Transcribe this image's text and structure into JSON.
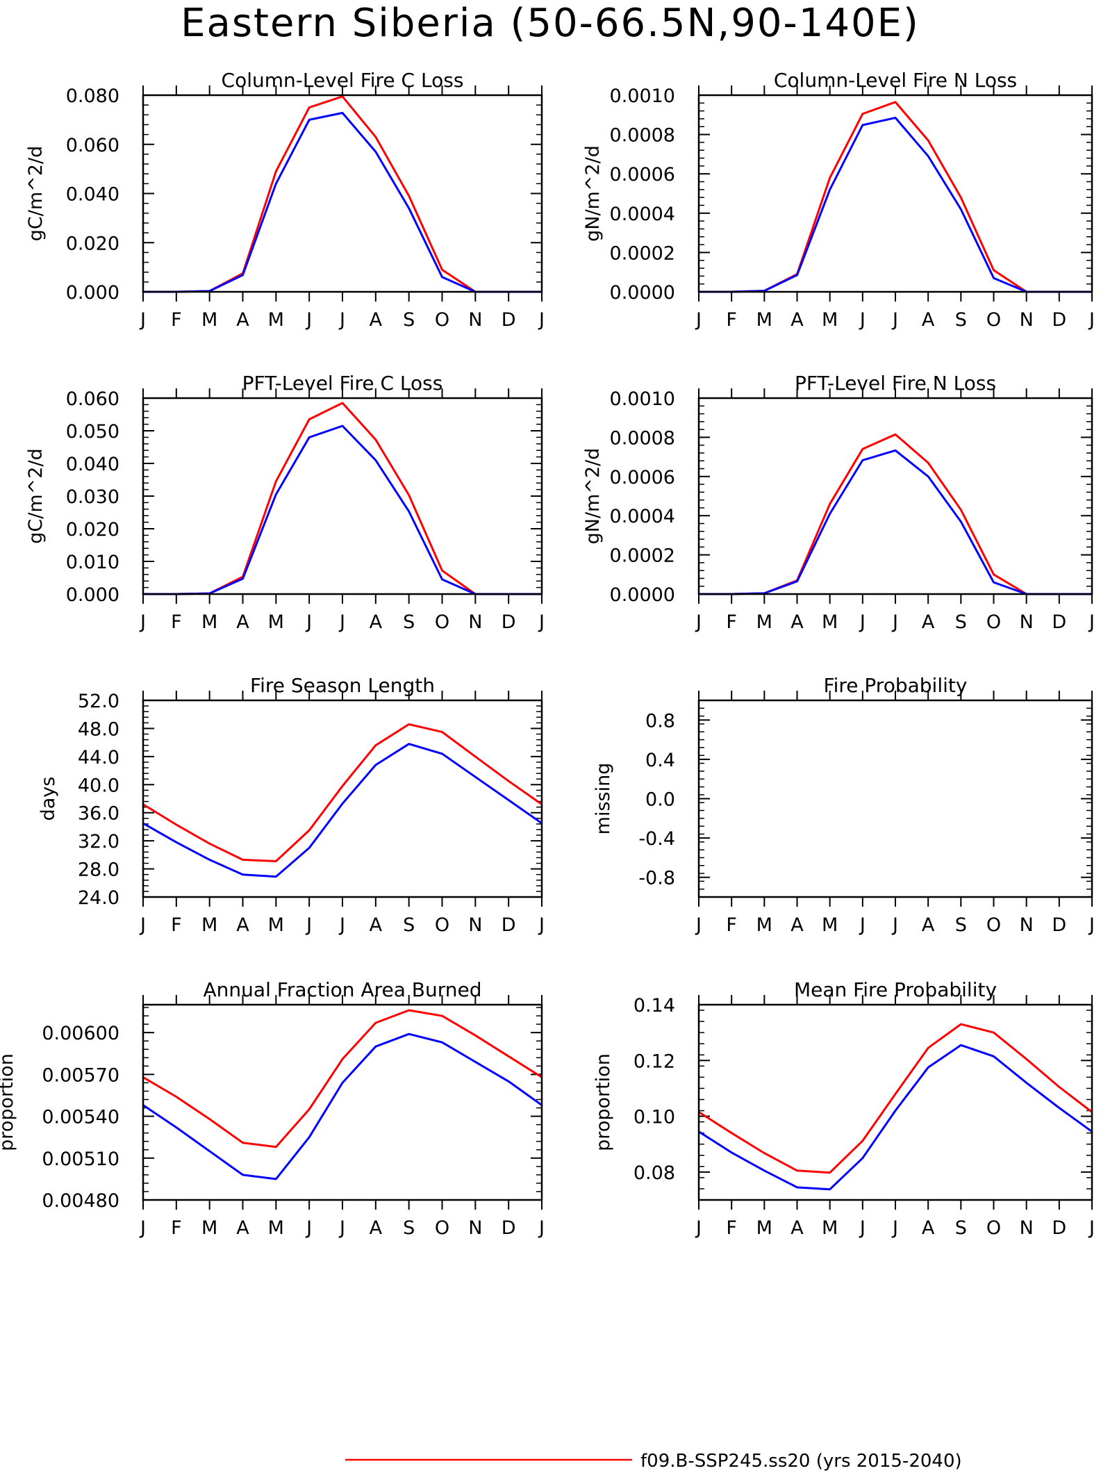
{
  "figure": {
    "title": "Eastern Siberia (50-66.5N,90-140E)",
    "colors": {
      "series_a": "#ff0000",
      "series_b": "#0000ff",
      "frame": "#000000"
    }
  },
  "legend": {
    "entries": [
      {
        "label": "f09.B-SSP245.ss20 (yrs 2015-2040)",
        "color": "#ff0000"
      }
    ]
  },
  "chart_data": [
    {
      "type": "line",
      "title": "Column-Level Fire C Loss",
      "ylabel": "gC/m^2/d",
      "categories": [
        "J",
        "F",
        "M",
        "A",
        "M",
        "J",
        "J",
        "A",
        "S",
        "O",
        "N",
        "D",
        "J"
      ],
      "ylim": [
        0,
        0.08
      ],
      "yticks": [
        "0.000",
        "0.020",
        "0.040",
        "0.060",
        "0.080"
      ],
      "series": [
        {
          "color": "#ff0000",
          "values": [
            0,
            0,
            0.0003,
            0.0075,
            0.049,
            0.075,
            0.0795,
            0.063,
            0.039,
            0.009,
            0,
            0,
            0
          ]
        },
        {
          "color": "#0000ff",
          "values": [
            0,
            0,
            0.0003,
            0.0068,
            0.044,
            0.07,
            0.0728,
            0.057,
            0.034,
            0.006,
            0,
            0,
            0
          ]
        }
      ]
    },
    {
      "type": "line",
      "title": "Column-Level Fire N Loss",
      "ylabel": "gN/m^2/d",
      "categories": [
        "J",
        "F",
        "M",
        "A",
        "M",
        "J",
        "J",
        "A",
        "S",
        "O",
        "N",
        "D",
        "J"
      ],
      "ylim": [
        0,
        0.001
      ],
      "yticks": [
        "0.0000",
        "0.0002",
        "0.0004",
        "0.0006",
        "0.0008",
        "0.0010"
      ],
      "series": [
        {
          "color": "#ff0000",
          "values": [
            0,
            0,
            5e-06,
            9e-05,
            0.00058,
            0.000905,
            0.000965,
            0.00077,
            0.00048,
            0.00011,
            0,
            0,
            0
          ]
        },
        {
          "color": "#0000ff",
          "values": [
            0,
            0,
            5e-06,
            8.5e-05,
            0.00052,
            0.000848,
            0.000885,
            0.00069,
            0.00042,
            7e-05,
            0,
            0,
            0
          ]
        }
      ]
    },
    {
      "type": "line",
      "title": "PFT-Level Fire C Loss",
      "ylabel": "gC/m^2/d",
      "categories": [
        "J",
        "F",
        "M",
        "A",
        "M",
        "J",
        "J",
        "A",
        "S",
        "O",
        "N",
        "D",
        "J"
      ],
      "ylim": [
        0,
        0.06
      ],
      "yticks": [
        "0.000",
        "0.010",
        "0.020",
        "0.030",
        "0.040",
        "0.050",
        "0.060"
      ],
      "series": [
        {
          "color": "#ff0000",
          "values": [
            0,
            0,
            0.0002,
            0.0053,
            0.0345,
            0.0535,
            0.0585,
            0.0473,
            0.0303,
            0.0072,
            0,
            0,
            0
          ]
        },
        {
          "color": "#0000ff",
          "values": [
            0,
            0,
            0.0002,
            0.0047,
            0.0305,
            0.048,
            0.0515,
            0.041,
            0.0253,
            0.0045,
            0,
            0,
            0
          ]
        }
      ]
    },
    {
      "type": "line",
      "title": "PFT-Level Fire N Loss",
      "ylabel": "gN/m^2/d",
      "categories": [
        "J",
        "F",
        "M",
        "A",
        "M",
        "J",
        "J",
        "A",
        "S",
        "O",
        "N",
        "D",
        "J"
      ],
      "ylim": [
        0,
        0.001
      ],
      "yticks": [
        "0.0000",
        "0.0002",
        "0.0004",
        "0.0006",
        "0.0008",
        "0.0010"
      ],
      "series": [
        {
          "color": "#ff0000",
          "values": [
            0,
            0,
            4e-06,
            7e-05,
            0.00046,
            0.00074,
            0.000815,
            0.00067,
            0.00043,
            0.0001,
            0,
            0,
            0
          ]
        },
        {
          "color": "#0000ff",
          "values": [
            0,
            0,
            4e-06,
            6.5e-05,
            0.00041,
            0.000683,
            0.000733,
            0.0006,
            0.00037,
            6e-05,
            0,
            0,
            0
          ]
        }
      ]
    },
    {
      "type": "line",
      "title": "Fire Season Length",
      "ylabel": "days",
      "categories": [
        "J",
        "F",
        "M",
        "A",
        "M",
        "J",
        "J",
        "A",
        "S",
        "O",
        "N",
        "D",
        "J"
      ],
      "ylim": [
        24,
        52
      ],
      "yticks": [
        "24.0",
        "28.0",
        "32.0",
        "36.0",
        "40.0",
        "44.0",
        "48.0",
        "52.0"
      ],
      "series": [
        {
          "color": "#ff0000",
          "values": [
            37.2,
            34.3,
            31.6,
            29.3,
            29.1,
            33.5,
            39.8,
            45.6,
            48.6,
            47.5,
            44.0,
            40.5,
            37.2
          ]
        },
        {
          "color": "#0000ff",
          "values": [
            34.5,
            31.8,
            29.3,
            27.2,
            26.9,
            31.0,
            37.3,
            42.8,
            45.8,
            44.4,
            41.1,
            37.8,
            34.5
          ]
        }
      ]
    },
    {
      "type": "line",
      "title": "Fire Probability",
      "ylabel": "missing",
      "categories": [
        "J",
        "F",
        "M",
        "A",
        "M",
        "J",
        "J",
        "A",
        "S",
        "O",
        "N",
        "D",
        "J"
      ],
      "ylim": [
        -1,
        1
      ],
      "yticks": [
        "-0.8",
        "-0.4",
        "0.0",
        "0.4",
        "0.8"
      ],
      "ytick_values": [
        -0.8,
        -0.4,
        0,
        0.4,
        0.8
      ],
      "series": []
    },
    {
      "type": "line",
      "title": "Annual Fraction Area Burned",
      "ylabel": "proportion",
      "categories": [
        "J",
        "F",
        "M",
        "A",
        "M",
        "J",
        "J",
        "A",
        "S",
        "O",
        "N",
        "D",
        "J"
      ],
      "ylim": [
        0.0048,
        0.0062
      ],
      "yticks": [
        "0.00480",
        "0.00510",
        "0.00540",
        "0.00570",
        "0.00600"
      ],
      "ytick_values": [
        0.0048,
        0.0051,
        0.0054,
        0.0057,
        0.006
      ],
      "series": [
        {
          "color": "#ff0000",
          "values": [
            0.00568,
            0.00554,
            0.00538,
            0.00521,
            0.00518,
            0.00545,
            0.00581,
            0.00607,
            0.00616,
            0.00612,
            0.00598,
            0.00583,
            0.00568
          ]
        },
        {
          "color": "#0000ff",
          "values": [
            0.00548,
            0.00532,
            0.00515,
            0.00498,
            0.00495,
            0.00525,
            0.00564,
            0.0059,
            0.00599,
            0.00593,
            0.00579,
            0.00565,
            0.00548
          ]
        }
      ]
    },
    {
      "type": "line",
      "title": "Mean Fire Probability",
      "ylabel": "proportion",
      "categories": [
        "J",
        "F",
        "M",
        "A",
        "M",
        "J",
        "J",
        "A",
        "S",
        "O",
        "N",
        "D",
        "J"
      ],
      "ylim": [
        0.07,
        0.14
      ],
      "yticks": [
        "0.08",
        "0.10",
        "0.12",
        "0.14"
      ],
      "ytick_values": [
        0.08,
        0.1,
        0.12,
        0.14
      ],
      "series": [
        {
          "color": "#ff0000",
          "values": [
            0.1015,
            0.094,
            0.0868,
            0.0805,
            0.0798,
            0.0912,
            0.108,
            0.1245,
            0.133,
            0.13,
            0.1205,
            0.1105,
            0.1015
          ]
        },
        {
          "color": "#0000ff",
          "values": [
            0.0945,
            0.087,
            0.0805,
            0.0745,
            0.0738,
            0.085,
            0.102,
            0.1175,
            0.1255,
            0.1215,
            0.112,
            0.103,
            0.0945
          ]
        }
      ]
    }
  ]
}
